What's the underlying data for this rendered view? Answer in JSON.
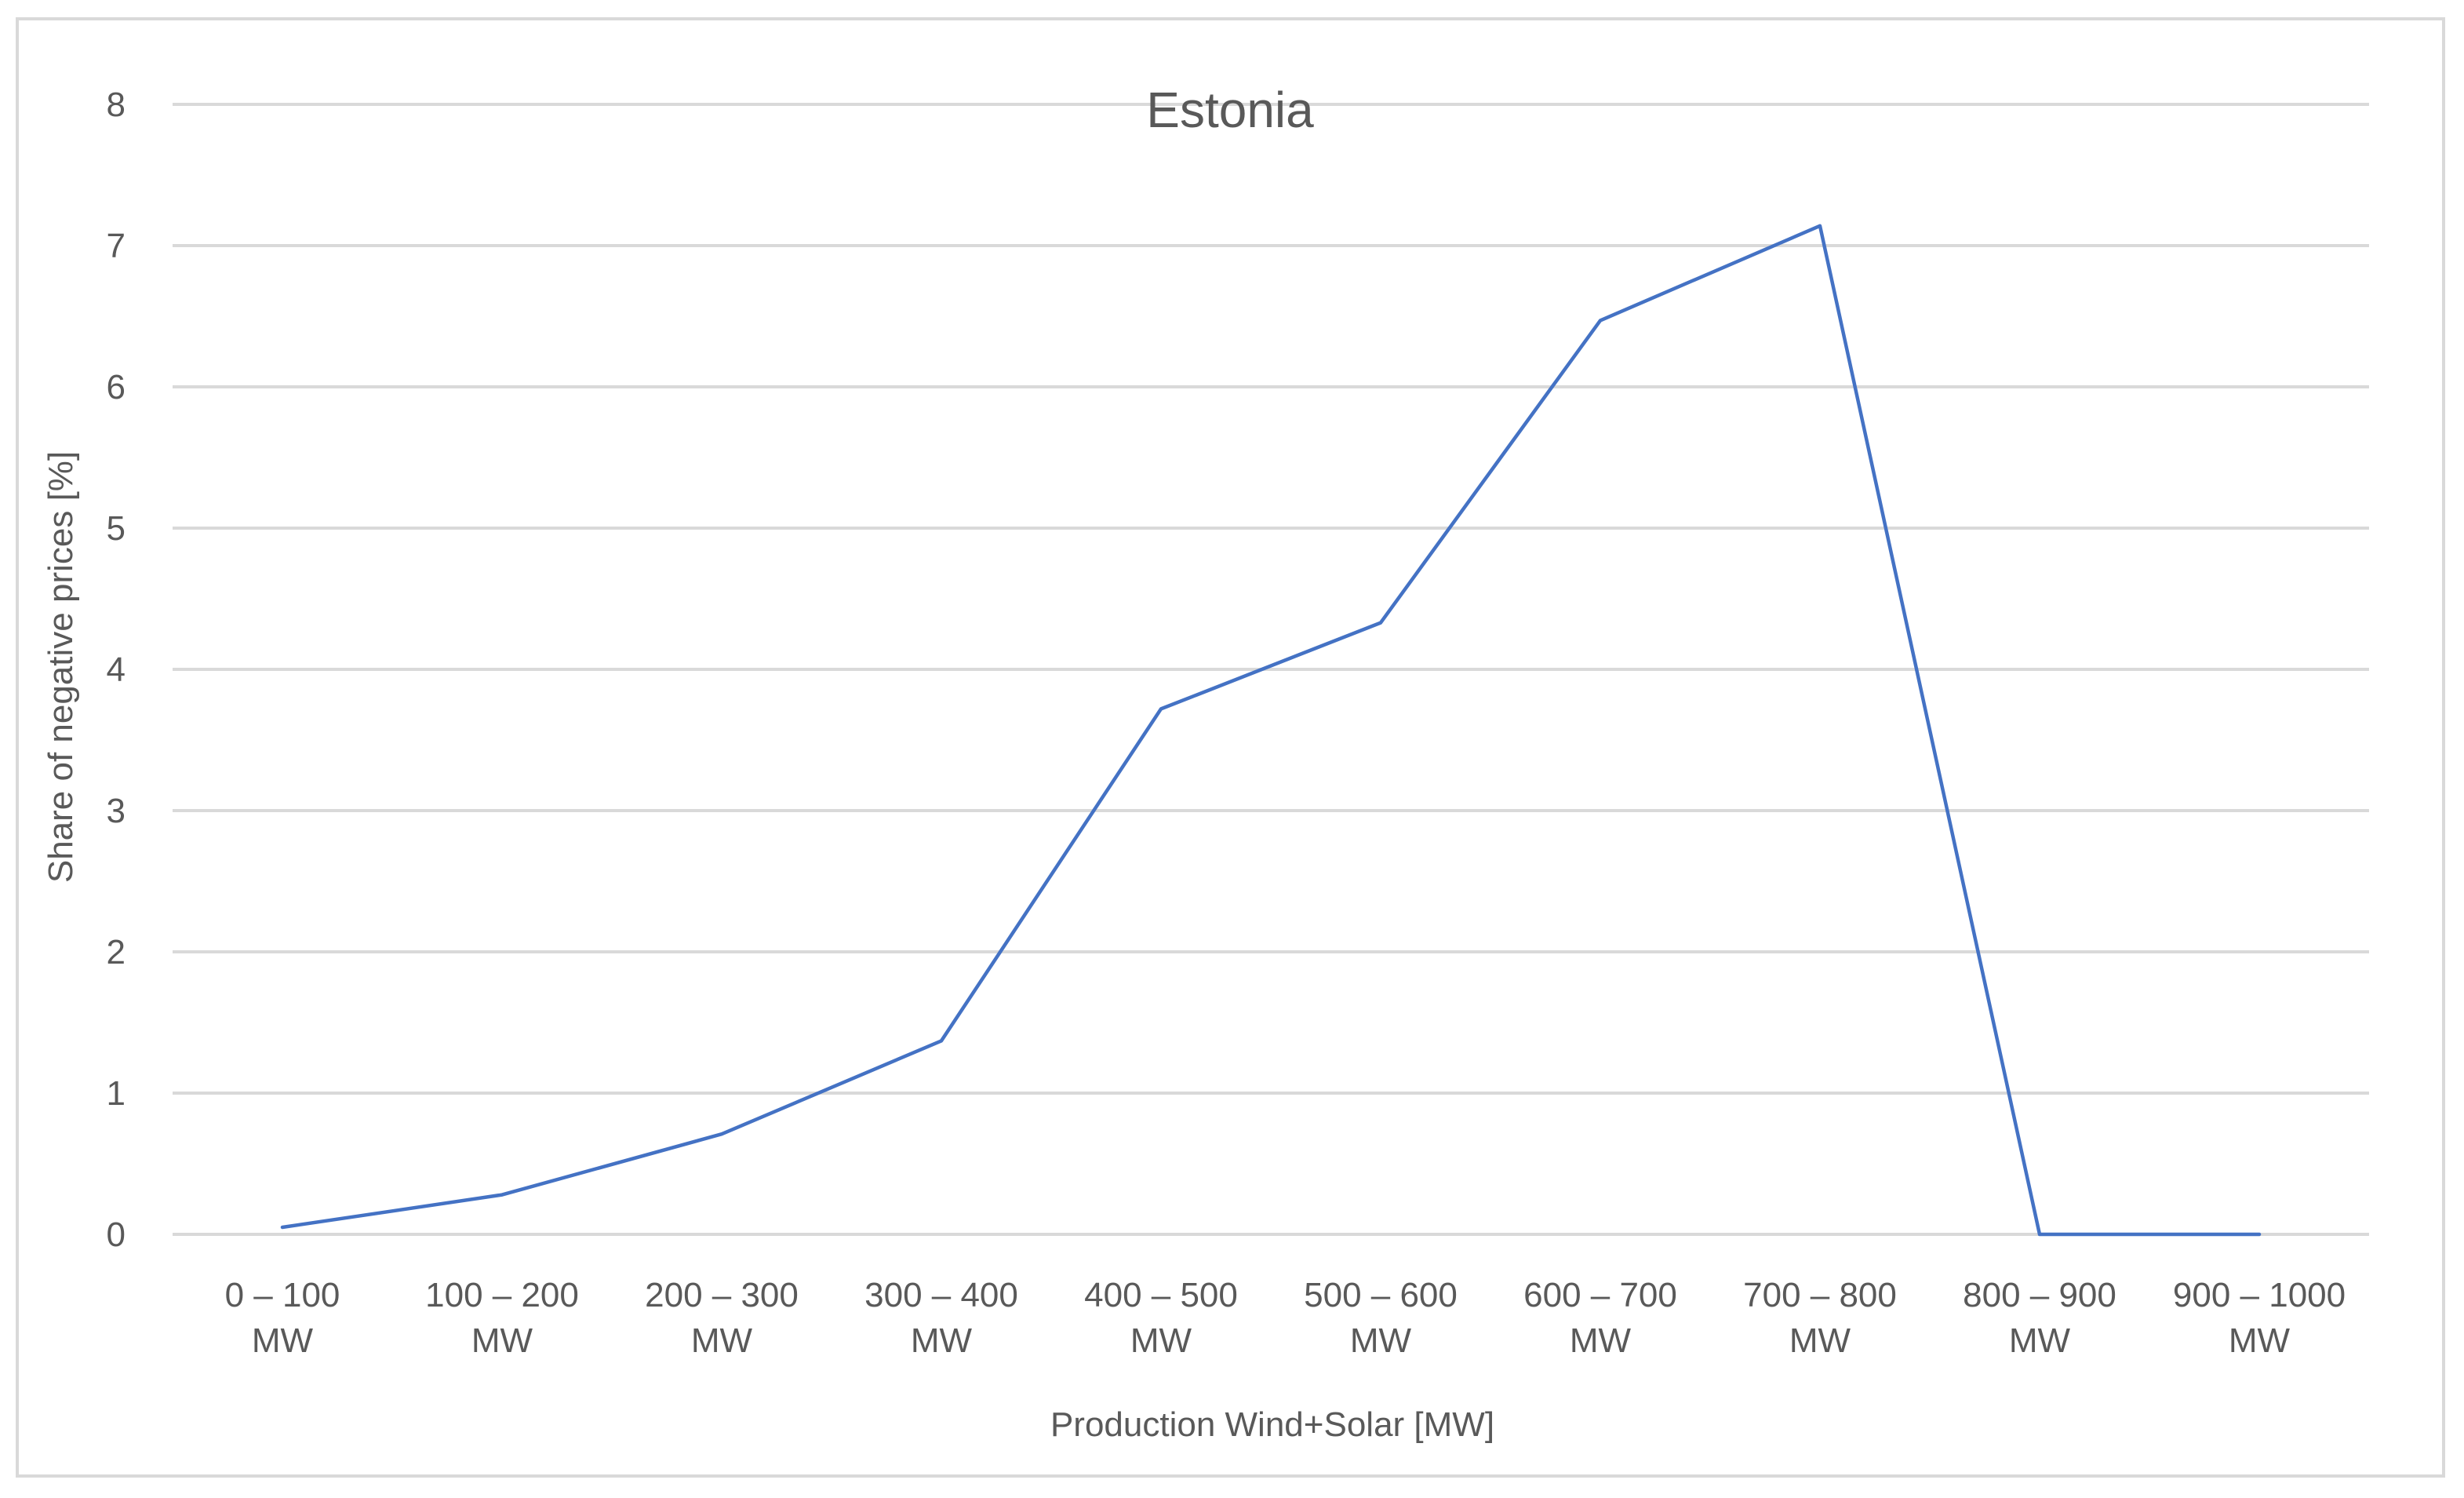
{
  "chart_data": {
    "type": "line",
    "title": "Estonia",
    "xlabel": "Production Wind+Solar [MW]",
    "ylabel": "Share of negative prices [%]",
    "categories": [
      [
        "0 – 100",
        "MW"
      ],
      [
        "100 – 200",
        "MW"
      ],
      [
        "200 – 300",
        "MW"
      ],
      [
        "300 – 400",
        "MW"
      ],
      [
        "400 – 500",
        "MW"
      ],
      [
        "500 – 600",
        "MW"
      ],
      [
        "600 – 700",
        "MW"
      ],
      [
        "700 – 800",
        "MW"
      ],
      [
        "800 – 900",
        "MW"
      ],
      [
        "900 – 1000",
        "MW"
      ]
    ],
    "series": [
      {
        "values": [
          0.05,
          0.28,
          0.71,
          1.37,
          3.72,
          4.33,
          6.47,
          7.14,
          0,
          0
        ]
      }
    ],
    "ylim": [
      0,
      8
    ],
    "yticks": [
      "0",
      "1",
      "2",
      "3",
      "4",
      "5",
      "6",
      "7",
      "8"
    ],
    "grid": true,
    "legend": "none",
    "colors": {
      "series": "#4472c4",
      "grid": "#d9d9d9",
      "text": "#595959"
    }
  }
}
